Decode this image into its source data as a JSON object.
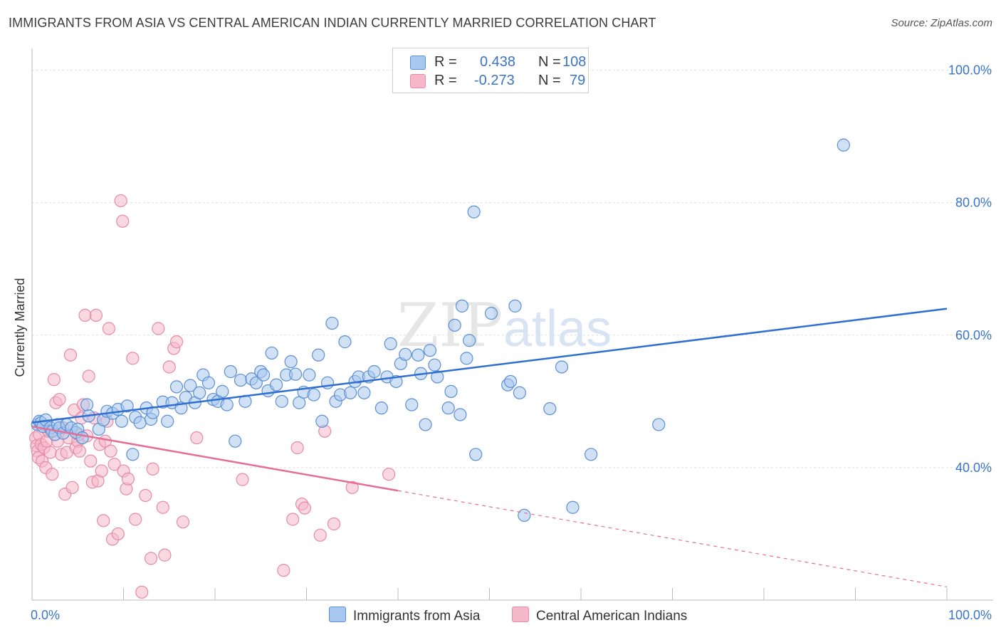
{
  "title": "IMMIGRANTS FROM ASIA VS CENTRAL AMERICAN INDIAN CURRENTLY MARRIED CORRELATION CHART",
  "source": "Source: ZipAtlas.com",
  "watermark": {
    "zip": "ZIP",
    "atlas": "atlas"
  },
  "legend": {
    "r_label": "R =",
    "n_label": "N =",
    "series": [
      {
        "r": "0.438",
        "n": "108"
      },
      {
        "r": "-0.273",
        "n": "79"
      }
    ]
  },
  "bottom_legend": [
    "Immigrants from Asia",
    "Central American Indians"
  ],
  "colors": {
    "blue_fill": "#a9c8ef",
    "blue_stroke": "#5b8fd4",
    "blue_line": "#2f6fd0",
    "pink_fill": "#f5b8cb",
    "pink_stroke": "#e58aa8",
    "pink_line": "#e46e97",
    "tick_text": "#3a74c8",
    "grid": "#dddddd"
  },
  "chart_data": {
    "type": "scatter",
    "title": "IMMIGRANTS FROM ASIA VS CENTRAL AMERICAN INDIAN CURRENTLY MARRIED CORRELATION CHART",
    "xlabel": "",
    "ylabel": "Currently Married",
    "xlim": [
      0,
      100
    ],
    "ylim": [
      20,
      102
    ],
    "x_tick_labels": [
      "0.0%",
      "100.0%"
    ],
    "y_ticks": [
      40,
      60,
      80,
      100
    ],
    "y_tick_labels": [
      "40.0%",
      "60.0%",
      "80.0%",
      "100.0%"
    ],
    "grid": true,
    "legend_position": "top-center",
    "series": [
      {
        "name": "Immigrants from Asia",
        "r": 0.438,
        "n": 108,
        "trend": {
          "x": [
            0,
            100
          ],
          "y": [
            46.8,
            64.0
          ],
          "dashed_from": null
        },
        "points": [
          [
            0.6,
            46.5
          ],
          [
            0.8,
            47.0
          ],
          [
            1.0,
            46.8
          ],
          [
            1.2,
            46.2
          ],
          [
            1.5,
            47.2
          ],
          [
            2.0,
            46.0
          ],
          [
            2.2,
            45.5
          ],
          [
            2.5,
            45.0
          ],
          [
            2.8,
            46.5
          ],
          [
            3.0,
            46.0
          ],
          [
            3.4,
            45.2
          ],
          [
            3.8,
            46.5
          ],
          [
            4.3,
            46.0
          ],
          [
            4.8,
            45.3
          ],
          [
            5.0,
            45.8
          ],
          [
            5.5,
            44.5
          ],
          [
            6.0,
            49.5
          ],
          [
            6.2,
            47.8
          ],
          [
            7.3,
            45.8
          ],
          [
            7.8,
            47.2
          ],
          [
            8.2,
            48.5
          ],
          [
            8.8,
            48.2
          ],
          [
            9.4,
            48.8
          ],
          [
            9.8,
            47.0
          ],
          [
            10.4,
            49.3
          ],
          [
            11.0,
            42.0
          ],
          [
            11.3,
            47.6
          ],
          [
            11.8,
            46.8
          ],
          [
            12.5,
            49.0
          ],
          [
            13.0,
            47.3
          ],
          [
            13.2,
            48.3
          ],
          [
            14.3,
            49.9
          ],
          [
            14.8,
            47.0
          ],
          [
            15.3,
            49.8
          ],
          [
            15.8,
            52.2
          ],
          [
            16.3,
            49.0
          ],
          [
            16.8,
            50.6
          ],
          [
            17.3,
            52.4
          ],
          [
            17.8,
            49.8
          ],
          [
            18.3,
            51.3
          ],
          [
            18.7,
            54.0
          ],
          [
            19.3,
            52.8
          ],
          [
            19.8,
            50.3
          ],
          [
            20.3,
            50.0
          ],
          [
            20.8,
            51.5
          ],
          [
            21.3,
            49.5
          ],
          [
            21.7,
            54.5
          ],
          [
            22.2,
            44.0
          ],
          [
            22.8,
            53.2
          ],
          [
            23.3,
            50.0
          ],
          [
            24.0,
            53.4
          ],
          [
            24.5,
            52.8
          ],
          [
            25.0,
            54.5
          ],
          [
            25.3,
            54.0
          ],
          [
            25.8,
            51.6
          ],
          [
            26.2,
            57.3
          ],
          [
            26.7,
            52.5
          ],
          [
            27.3,
            50.0
          ],
          [
            27.8,
            54.0
          ],
          [
            28.3,
            56.0
          ],
          [
            28.8,
            54.1
          ],
          [
            29.2,
            49.8
          ],
          [
            29.7,
            51.4
          ],
          [
            30.3,
            54.0
          ],
          [
            30.8,
            51.0
          ],
          [
            31.3,
            57.0
          ],
          [
            31.7,
            47.0
          ],
          [
            32.3,
            52.8
          ],
          [
            32.8,
            61.8
          ],
          [
            33.2,
            50.0
          ],
          [
            33.7,
            51.0
          ],
          [
            34.2,
            59.0
          ],
          [
            34.8,
            51.3
          ],
          [
            35.3,
            53.0
          ],
          [
            35.7,
            53.7
          ],
          [
            36.3,
            51.3
          ],
          [
            36.8,
            53.7
          ],
          [
            37.4,
            54.5
          ],
          [
            38.2,
            49.0
          ],
          [
            38.8,
            53.7
          ],
          [
            39.2,
            58.7
          ],
          [
            39.8,
            53.0
          ],
          [
            40.3,
            55.7
          ],
          [
            40.8,
            57.1
          ],
          [
            41.5,
            49.5
          ],
          [
            42.2,
            57.0
          ],
          [
            42.5,
            54.2
          ],
          [
            43.0,
            46.5
          ],
          [
            43.5,
            57.7
          ],
          [
            44.0,
            55.5
          ],
          [
            44.3,
            53.7
          ],
          [
            45.5,
            49.0
          ],
          [
            45.8,
            51.5
          ],
          [
            46.2,
            61.5
          ],
          [
            46.8,
            48.0
          ],
          [
            47.0,
            64.4
          ],
          [
            47.5,
            56.5
          ],
          [
            47.8,
            59.2
          ],
          [
            48.3,
            78.6
          ],
          [
            48.5,
            42.0
          ],
          [
            50.2,
            63.3
          ],
          [
            52.0,
            52.5
          ],
          [
            52.3,
            53.0
          ],
          [
            52.8,
            64.4
          ],
          [
            53.3,
            51.3
          ],
          [
            53.8,
            32.8
          ],
          [
            56.6,
            48.9
          ],
          [
            57.9,
            55.2
          ],
          [
            59.1,
            34.0
          ],
          [
            61.1,
            42.0
          ],
          [
            68.5,
            46.5
          ],
          [
            88.7,
            88.7
          ]
        ]
      },
      {
        "name": "Central American Indians",
        "r": -0.273,
        "n": 79,
        "trend": {
          "x": [
            0,
            100
          ],
          "y": [
            46.2,
            22.0
          ],
          "dashed_from": 40
        },
        "points": [
          [
            0.4,
            44.5
          ],
          [
            0.5,
            43.3
          ],
          [
            0.6,
            42.5
          ],
          [
            0.7,
            41.5
          ],
          [
            0.8,
            45.0
          ],
          [
            1.0,
            43.5
          ],
          [
            1.1,
            41.0
          ],
          [
            1.3,
            43.0
          ],
          [
            1.5,
            40.0
          ],
          [
            1.6,
            44.0
          ],
          [
            1.8,
            45.5
          ],
          [
            2.0,
            42.3
          ],
          [
            2.2,
            39.0
          ],
          [
            2.4,
            53.3
          ],
          [
            2.6,
            49.8
          ],
          [
            2.8,
            44.0
          ],
          [
            3.0,
            50.3
          ],
          [
            3.2,
            42.0
          ],
          [
            3.4,
            46.0
          ],
          [
            3.6,
            36.0
          ],
          [
            3.8,
            42.3
          ],
          [
            4.0,
            44.5
          ],
          [
            4.2,
            57.0
          ],
          [
            4.4,
            37.0
          ],
          [
            4.6,
            48.7
          ],
          [
            4.8,
            43.0
          ],
          [
            5.0,
            44.0
          ],
          [
            5.2,
            42.5
          ],
          [
            5.4,
            47.5
          ],
          [
            5.6,
            49.5
          ],
          [
            5.8,
            63.0
          ],
          [
            6.0,
            44.8
          ],
          [
            6.2,
            53.8
          ],
          [
            6.4,
            41.0
          ],
          [
            6.6,
            37.8
          ],
          [
            6.8,
            47.5
          ],
          [
            7.0,
            63.0
          ],
          [
            7.2,
            38.0
          ],
          [
            7.4,
            43.5
          ],
          [
            7.6,
            39.5
          ],
          [
            7.8,
            32.0
          ],
          [
            8.0,
            44.0
          ],
          [
            8.2,
            47.0
          ],
          [
            8.4,
            61.0
          ],
          [
            8.6,
            42.5
          ],
          [
            8.8,
            29.2
          ],
          [
            9.0,
            40.5
          ],
          [
            9.4,
            30.0
          ],
          [
            9.7,
            80.3
          ],
          [
            9.9,
            77.2
          ],
          [
            10.0,
            39.5
          ],
          [
            10.3,
            36.8
          ],
          [
            10.5,
            38.3
          ],
          [
            11.0,
            56.5
          ],
          [
            11.3,
            32.2
          ],
          [
            12.0,
            21.2
          ],
          [
            12.4,
            35.8
          ],
          [
            13.0,
            26.3
          ],
          [
            13.2,
            39.8
          ],
          [
            13.8,
            61.0
          ],
          [
            14.3,
            34.0
          ],
          [
            14.5,
            26.8
          ],
          [
            15.0,
            55.2
          ],
          [
            15.5,
            58.0
          ],
          [
            15.8,
            59.0
          ],
          [
            16.5,
            31.8
          ],
          [
            18.0,
            44.5
          ],
          [
            23.0,
            38.2
          ],
          [
            27.5,
            24.5
          ],
          [
            28.5,
            32.2
          ],
          [
            29.0,
            43.0
          ],
          [
            29.5,
            34.5
          ],
          [
            29.8,
            33.9
          ],
          [
            31.5,
            29.8
          ],
          [
            32.0,
            45.5
          ],
          [
            33.0,
            31.5
          ],
          [
            35.0,
            37.0
          ],
          [
            39.0,
            39.0
          ],
          [
            5.1,
            45.0
          ]
        ]
      }
    ]
  }
}
